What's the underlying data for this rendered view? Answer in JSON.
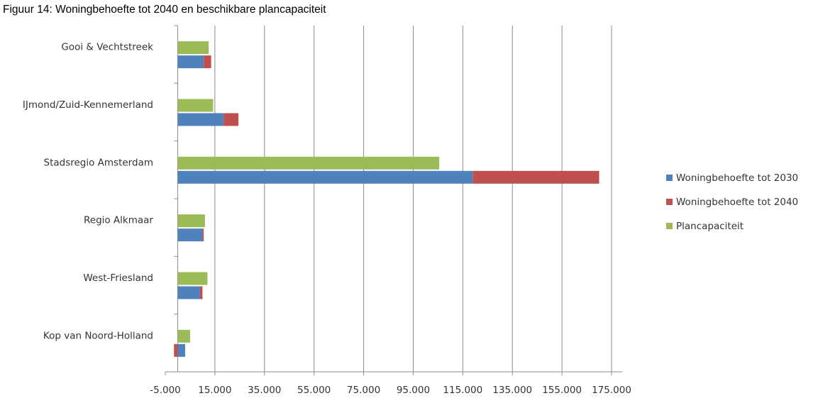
{
  "figure": {
    "title": "Figuur 14: Woningbehoefte tot 2040 en beschikbare plancapaciteit"
  },
  "chart_data": {
    "type": "bar",
    "orientation": "horizontal",
    "title": "",
    "xlabel": "",
    "ylabel": "",
    "categories": [
      "Gooi & Vechtstreek",
      "IJmond/Zuid-Kennemerland",
      "Stadsregio Amsterdam",
      "Regio Alkmaar",
      "West-Friesland",
      "Kop van Noord-Holland"
    ],
    "series": [
      {
        "name": "Woningbehoefte tot 2030",
        "color": "#4f81bd",
        "values": [
          10500,
          18500,
          119000,
          10000,
          9000,
          3000
        ],
        "stack": "behoefte"
      },
      {
        "name": "Woningbehoefte tot 2040",
        "color": "#c0504d",
        "values": [
          3000,
          6000,
          51000,
          500,
          1000,
          -1500
        ],
        "stack": "behoefte"
      },
      {
        "name": "Plancapaciteit",
        "color": "#9bbb59",
        "values": [
          12500,
          14300,
          105500,
          11000,
          12000,
          5000
        ],
        "stack": "plan"
      }
    ],
    "xlim": [
      -5000,
      175000
    ],
    "xticks": [
      -5000,
      15000,
      35000,
      55000,
      75000,
      95000,
      115000,
      135000,
      155000,
      175000
    ],
    "xtick_labels": [
      "-5.000",
      "15.000",
      "35.000",
      "55.000",
      "75.000",
      "95.000",
      "115.000",
      "135.000",
      "155.000",
      "175.000"
    ],
    "grid": true,
    "legend_position": "right"
  }
}
